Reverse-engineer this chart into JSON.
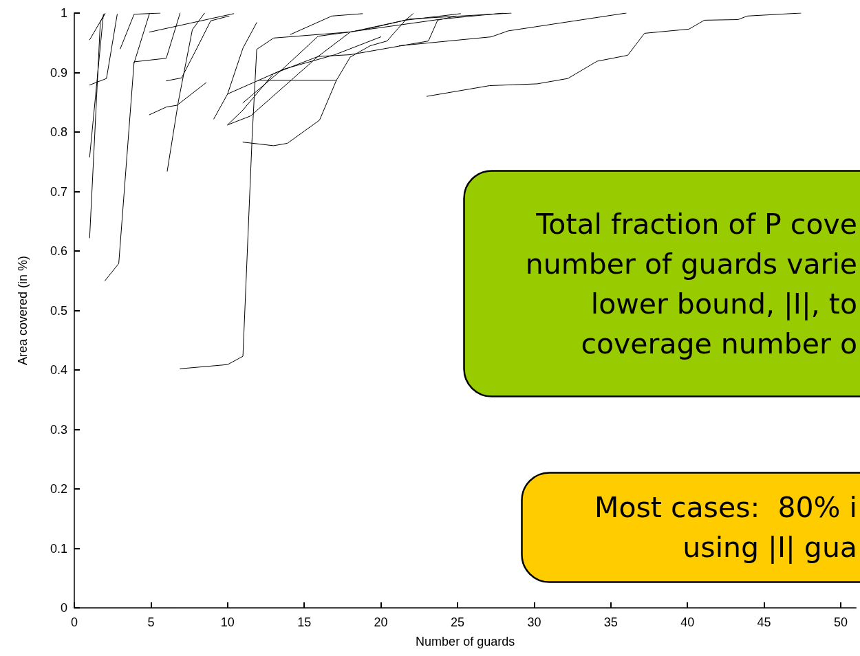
{
  "chart_data": {
    "type": "line",
    "xlabel": "Number of guards",
    "ylabel": "Area covered (in %)",
    "xlim": [
      0,
      51
    ],
    "ylim": [
      0,
      1
    ],
    "xticks": [
      0,
      5,
      10,
      15,
      20,
      25,
      30,
      35,
      40,
      45,
      50
    ],
    "yticks": [
      0,
      0.1,
      0.2,
      0.3,
      0.4,
      0.5,
      0.6,
      0.7,
      0.8,
      0.9,
      1
    ],
    "grid": false,
    "marker": "none",
    "line_style": "solid",
    "annotations": [
      "Total fraction of P cove\nnumber of guards varie\nlower bound, |I|, to\ncoverage number o",
      "Most cases:  80% i\nusing |I| gua"
    ],
    "series": [
      {
        "color": "#000000",
        "x": [
          23.0,
          27.1,
          30.2,
          32.2,
          34.1,
          36.1,
          37.2,
          40.1,
          41.1,
          43.3,
          43.9,
          47.4
        ],
        "values": [
          0.86,
          0.878,
          0.881,
          0.89,
          0.919,
          0.929,
          0.966,
          0.973,
          0.988,
          0.989,
          0.995,
          1.0
        ]
      },
      {
        "color": "#000000",
        "x": [
          21.2,
          27.2,
          28.3,
          36.0
        ],
        "values": [
          0.945,
          0.96,
          0.97,
          1.0
        ]
      },
      {
        "color": "#000000",
        "x": [
          6.9,
          10.0,
          11.0,
          11.6,
          11.9,
          13.0,
          17.9,
          24.0,
          28.0
        ],
        "values": [
          0.402,
          0.409,
          0.423,
          0.791,
          0.939,
          0.958,
          0.968,
          0.99,
          1.0
        ]
      },
      {
        "color": "#000000",
        "x": [
          1.0,
          1.7,
          2.0
        ],
        "values": [
          0.622,
          0.986,
          0.999
        ]
      },
      {
        "color": "#000000",
        "x": [
          2.0,
          2.9,
          3.9,
          6.0,
          6.9
        ],
        "values": [
          0.55,
          0.579,
          0.918,
          0.924,
          1.0
        ]
      },
      {
        "color": "#000000",
        "x": [
          3.9,
          4.9
        ],
        "values": [
          0.916,
          0.999
        ]
      },
      {
        "color": "#000000",
        "x": [
          1.0,
          1.9
        ],
        "values": [
          0.758,
          0.998
        ]
      },
      {
        "color": "#000000",
        "x": [
          1.0,
          2.1,
          2.8
        ],
        "values": [
          0.879,
          0.89,
          0.998
        ]
      },
      {
        "color": "#000000",
        "x": [
          1.0,
          2.0
        ],
        "values": [
          0.955,
          0.999
        ]
      },
      {
        "color": "#000000",
        "x": [
          3.0,
          3.9,
          5.6
        ],
        "values": [
          0.94,
          0.998,
          1.0
        ]
      },
      {
        "color": "#000000",
        "x": [
          6.06,
          6.8,
          7.7,
          8.5
        ],
        "values": [
          0.734,
          0.853,
          0.972,
          1.0
        ]
      },
      {
        "color": "#000000",
        "x": [
          4.9,
          6.0,
          6.7,
          8.6
        ],
        "values": [
          0.829,
          0.842,
          0.845,
          0.883
        ]
      },
      {
        "color": "#000000",
        "x": [
          6.0,
          7.0,
          8.0,
          8.9,
          10.1
        ],
        "values": [
          0.886,
          0.891,
          0.941,
          0.987,
          0.995
        ]
      },
      {
        "color": "#000000",
        "x": [
          4.9,
          8.8,
          10.4
        ],
        "values": [
          0.968,
          0.99,
          0.999
        ]
      },
      {
        "color": "#000000",
        "x": [
          9.1,
          10.0,
          11.0,
          11.9
        ],
        "values": [
          0.822,
          0.864,
          0.941,
          0.984
        ]
      },
      {
        "color": "#000000",
        "x": [
          10.0,
          11.0,
          13.0,
          15.9,
          18.0,
          21.6,
          25.2
        ],
        "values": [
          0.812,
          0.837,
          0.898,
          0.927,
          0.968,
          0.988,
          0.999
        ]
      },
      {
        "color": "#000000",
        "x": [
          11.0,
          13.0,
          13.9,
          16.0,
          17.1,
          18.0,
          19.3,
          20.4,
          21.6,
          22.1
        ],
        "values": [
          0.783,
          0.777,
          0.781,
          0.82,
          0.887,
          0.926,
          0.945,
          0.953,
          0.988,
          0.999
        ]
      },
      {
        "color": "#000000",
        "x": [
          12.0,
          17.1
        ],
        "values": [
          0.887,
          0.887
        ]
      },
      {
        "color": "#000000",
        "x": [
          11.0,
          13.6,
          15.9,
          17.9
        ],
        "values": [
          0.849,
          0.906,
          0.961,
          0.968
        ]
      },
      {
        "color": "#000000",
        "x": [
          10.0,
          11.5,
          15.9,
          18.0,
          23.1,
          23.7,
          24.9
        ],
        "values": [
          0.812,
          0.827,
          0.927,
          0.93,
          0.953,
          0.988,
          0.995
        ]
      },
      {
        "color": "#000000",
        "x": [
          10.0,
          13.7,
          17.0,
          20.0
        ],
        "values": [
          0.864,
          0.906,
          0.93,
          0.96
        ]
      },
      {
        "color": "#000000",
        "x": [
          14.1,
          16.8,
          18.8
        ],
        "values": [
          0.964,
          0.995,
          0.999
        ]
      },
      {
        "color": "#000000",
        "x": [
          18.9,
          21.9,
          28.5
        ],
        "values": [
          0.972,
          0.99,
          1.0
        ]
      }
    ]
  }
}
